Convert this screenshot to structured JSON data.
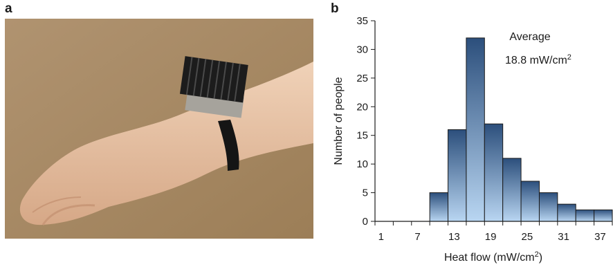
{
  "panels": {
    "a_label": "a",
    "b_label": "b"
  },
  "photo": {
    "subject": "wrist-worn thermoelectric generator with black heat-sink fins on a strap"
  },
  "colors": {
    "bar_top": "#2c4f7c",
    "bar_bottom": "#b9d6f2",
    "photo_background": "#a98b63",
    "skin": "#e8c3a6",
    "heatsink": "#1c1c1c"
  },
  "chart_data": {
    "type": "bar",
    "bin_width": 3,
    "bin_starts": [
      9,
      12,
      15,
      18,
      21,
      24,
      27,
      30,
      33,
      36
    ],
    "values": [
      5,
      16,
      32,
      17,
      11,
      7,
      5,
      3,
      2,
      2
    ],
    "xlim": [
      0,
      39
    ],
    "ylim": [
      0,
      35
    ],
    "x_ticks": [
      0,
      3,
      6,
      9,
      12,
      15,
      18,
      21,
      24,
      27,
      30,
      33,
      36,
      39
    ],
    "x_tick_labels": [
      {
        "value": 1,
        "label": "1"
      },
      {
        "value": 7,
        "label": "7"
      },
      {
        "value": 13,
        "label": "13"
      },
      {
        "value": 19,
        "label": "19"
      },
      {
        "value": 25,
        "label": "25"
      },
      {
        "value": 31,
        "label": "31"
      },
      {
        "value": 37,
        "label": "37"
      }
    ],
    "y_ticks": [
      0,
      5,
      10,
      15,
      20,
      25,
      30,
      35
    ],
    "xlabel_text": "Heat flow (mW/cm",
    "xlabel_sup": "2",
    "xlabel_tail": ")",
    "ylabel": "Number of people",
    "annotation_line1": "Average",
    "annotation_line2": "18.8 mW/cm",
    "annotation_sup": "2",
    "grid": false
  }
}
